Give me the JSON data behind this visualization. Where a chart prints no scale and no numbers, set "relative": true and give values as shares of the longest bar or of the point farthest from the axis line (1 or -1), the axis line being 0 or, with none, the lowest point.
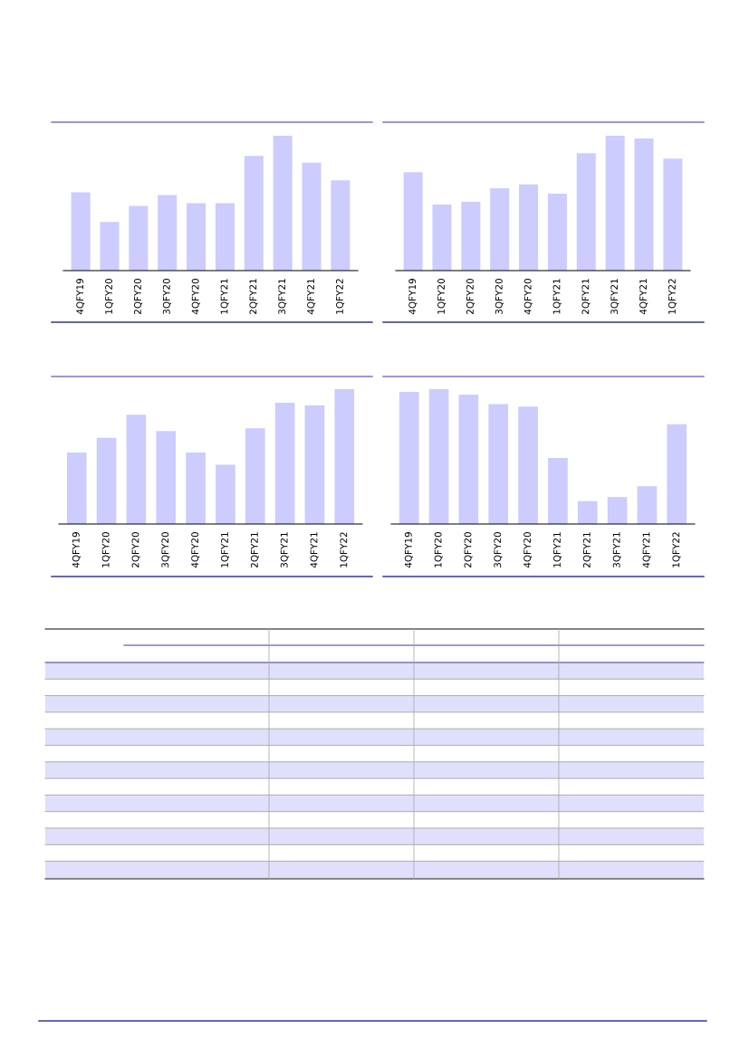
{
  "chart_data": [
    {
      "type": "bar",
      "relative": true,
      "color": "#ccccff",
      "categories": [
        "4QFY19",
        "1QFY20",
        "2QFY20",
        "3QFY20",
        "4QFY20",
        "1QFY21",
        "2QFY21",
        "3QFY21",
        "4QFY21",
        "1QFY22"
      ],
      "values": [
        0.58,
        0.36,
        0.48,
        0.56,
        0.5,
        0.5,
        0.85,
        1,
        0.8,
        0.67
      ]
    },
    {
      "type": "bar",
      "relative": true,
      "color": "#ccccff",
      "categories": [
        "4QFY19",
        "1QFY20",
        "2QFY20",
        "3QFY20",
        "4QFY20",
        "1QFY21",
        "2QFY21",
        "3QFY21",
        "4QFY21",
        "1QFY22"
      ],
      "values": [
        0.73,
        0.49,
        0.51,
        0.61,
        0.64,
        0.57,
        0.87,
        1,
        0.98,
        0.83
      ]
    },
    {
      "type": "bar",
      "relative": true,
      "color": "#ccccff",
      "categories": [
        "4QFY19",
        "1QFY20",
        "2QFY20",
        "3QFY20",
        "4QFY20",
        "1QFY21",
        "2QFY21",
        "3QFY21",
        "4QFY21",
        "1QFY22"
      ],
      "values": [
        0.53,
        0.64,
        0.81,
        0.69,
        0.53,
        0.44,
        0.71,
        0.9,
        0.88,
        1
      ]
    },
    {
      "type": "bar",
      "relative": true,
      "color": "#ccccff",
      "categories": [
        "4QFY19",
        "1QFY20",
        "2QFY20",
        "3QFY20",
        "4QFY20",
        "1QFY21",
        "2QFY21",
        "3QFY21",
        "4QFY21",
        "1QFY22"
      ],
      "values": [
        0.98,
        1,
        0.96,
        0.89,
        0.87,
        0.49,
        0.17,
        0.2,
        0.28,
        0.74
      ]
    }
  ]
}
